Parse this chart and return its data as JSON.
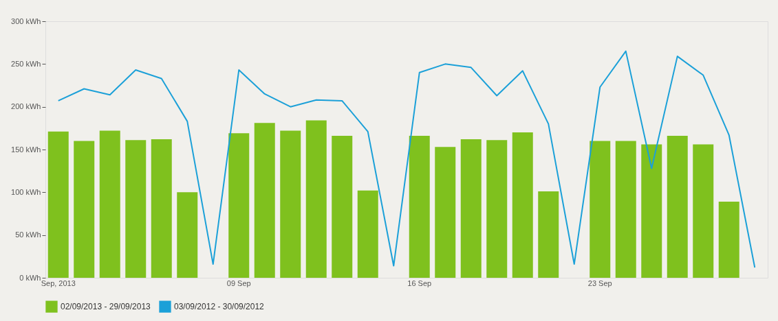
{
  "chart_data": {
    "type": "bar",
    "categories": [
      "Sep, 2013",
      null,
      null,
      null,
      null,
      null,
      null,
      "09 Sep",
      null,
      null,
      null,
      null,
      null,
      null,
      "16 Sep",
      null,
      null,
      null,
      null,
      null,
      null,
      "23 Sep",
      null,
      null,
      null,
      null,
      null,
      null
    ],
    "series": [
      {
        "name": "02/09/2013 - 29/09/2013",
        "color": "#7fc11e",
        "values": [
          171,
          160,
          172,
          161,
          162,
          100,
          0,
          169,
          181,
          172,
          184,
          166,
          102,
          null,
          166,
          153,
          162,
          161,
          170,
          101,
          null,
          160,
          160,
          156,
          166,
          156,
          89,
          null
        ]
      },
      {
        "name": "03/09/2012 - 30/09/2012",
        "color": "#1ba0d8",
        "type": "line",
        "values": [
          207,
          221,
          214,
          243,
          233,
          183,
          16,
          243,
          215,
          200,
          208,
          207,
          171,
          14,
          240,
          250,
          246,
          213,
          242,
          180,
          16,
          223,
          265,
          128,
          259,
          237,
          167,
          12
        ]
      }
    ],
    "ylim": [
      0,
      300
    ],
    "yticks": [
      {
        "value": 0,
        "label": "0 kWh"
      },
      {
        "value": 50,
        "label": "50 kWh"
      },
      {
        "value": 100,
        "label": "100 kWh"
      },
      {
        "value": 150,
        "label": "150 kWh"
      },
      {
        "value": 200,
        "label": "200 kWh"
      },
      {
        "value": 250,
        "label": "250 kWh"
      },
      {
        "value": 300,
        "label": "300 kWh"
      }
    ],
    "grid": false,
    "legend": "bottom left",
    "line_style": "solid",
    "marker": "none"
  }
}
